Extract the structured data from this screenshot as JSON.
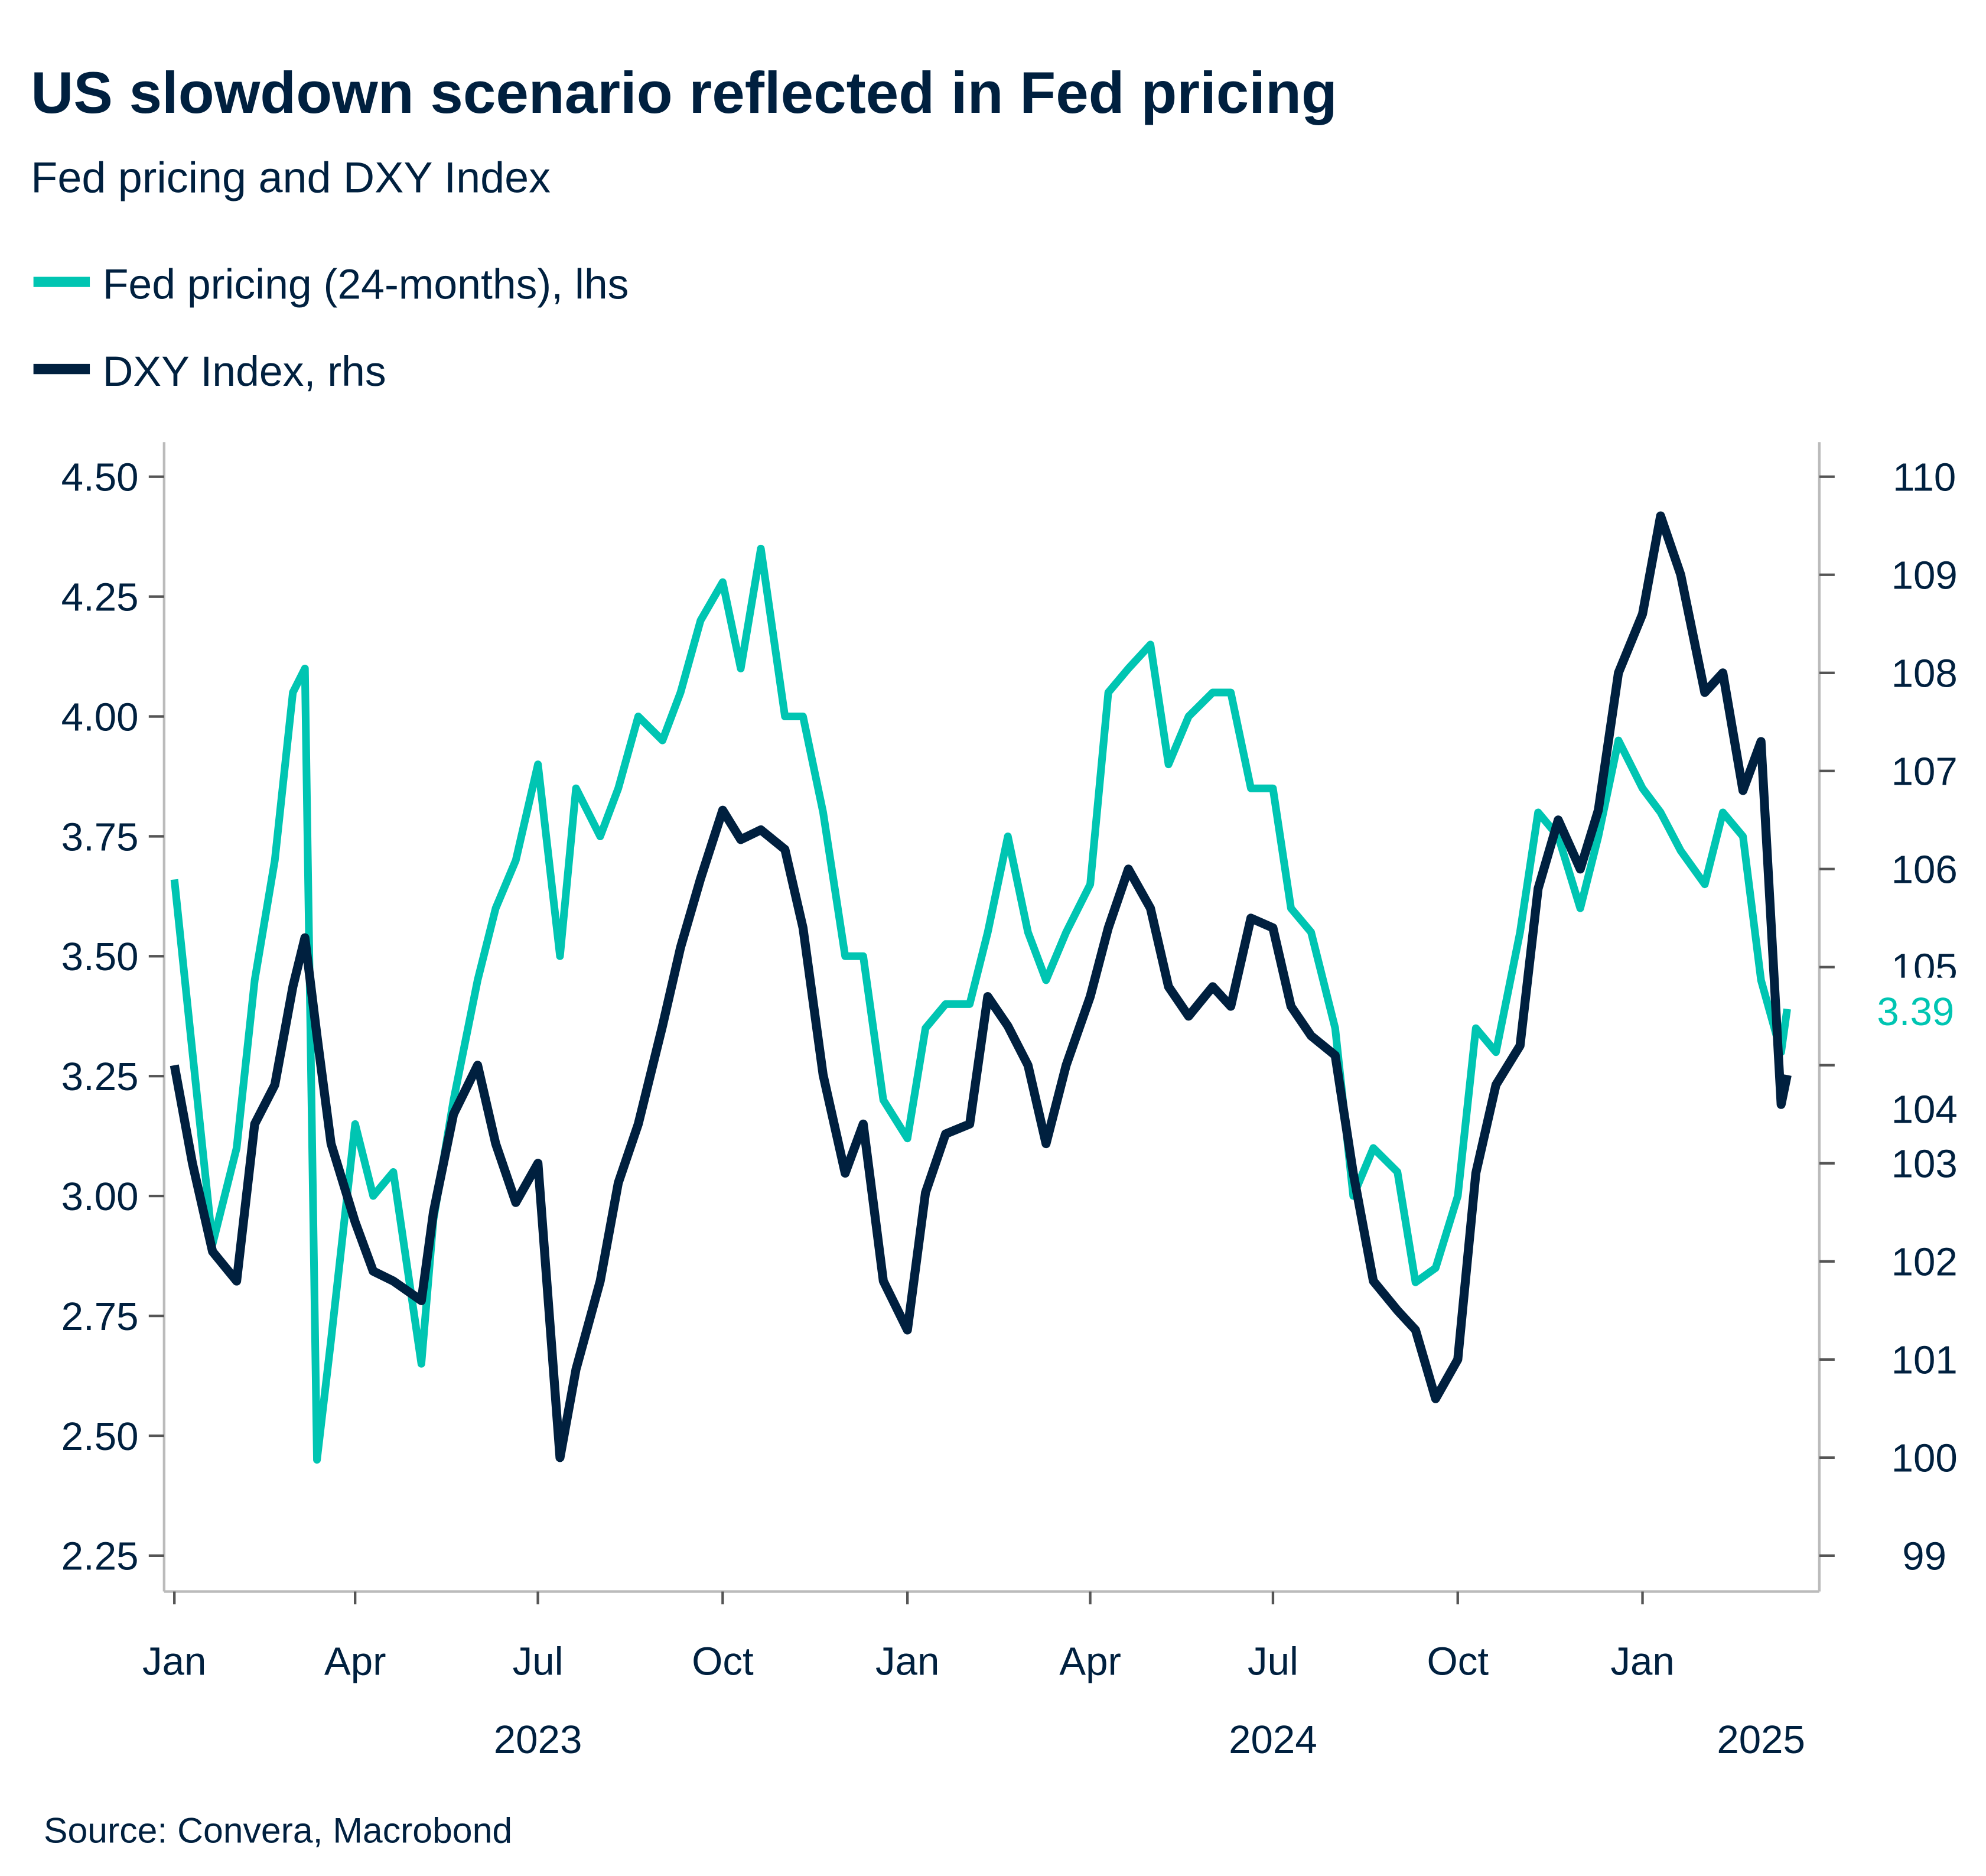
{
  "title": "US slowdown scenario reflected in Fed pricing",
  "subtitle": "Fed pricing and DXY Index",
  "source": "Source: Convera, Macrobond",
  "colors": {
    "fed": "#00c5b2",
    "dxy": "#00203f",
    "axis": "#bbbbbb",
    "tick": "#555555"
  },
  "chart_data": {
    "type": "line",
    "title": "US slowdown scenario reflected in Fed pricing",
    "subtitle": "Fed pricing and DXY Index",
    "legend_position": "top-left",
    "grid": false,
    "x_axis": {
      "range": [
        "2023-01-01",
        "2025-03-14"
      ],
      "ticks": [
        {
          "date": "2023-01-01",
          "label": "Jan"
        },
        {
          "date": "2023-04-01",
          "label": "Apr"
        },
        {
          "date": "2023-07-01",
          "label": "Jul"
        },
        {
          "date": "2023-10-01",
          "label": "Oct"
        },
        {
          "date": "2024-01-01",
          "label": "Jan"
        },
        {
          "date": "2024-04-01",
          "label": "Apr"
        },
        {
          "date": "2024-07-01",
          "label": "Jul"
        },
        {
          "date": "2024-10-01",
          "label": "Oct"
        },
        {
          "date": "2025-01-01",
          "label": "Jan"
        }
      ],
      "year_labels": [
        {
          "date": "2023-07-01",
          "label": "2023"
        },
        {
          "date": "2024-07-01",
          "label": "2024"
        },
        {
          "date": "2025-03-01",
          "label": "2025"
        }
      ]
    },
    "y_left": {
      "range": [
        2.25,
        4.5
      ],
      "ticks": [
        "2.25",
        "2.50",
        "2.75",
        "3.00",
        "3.25",
        "3.50",
        "3.75",
        "4.00",
        "4.25",
        "4.50"
      ]
    },
    "y_right": {
      "range": [
        99,
        110
      ],
      "ticks": [
        "99",
        "100",
        "101",
        "102",
        "103",
        "104",
        "105",
        "106",
        "107",
        "108",
        "109",
        "110"
      ]
    },
    "last_value_label": "3.39",
    "x": [
      "2023-01-01",
      "2023-01-10",
      "2023-01-20",
      "2023-02-01",
      "2023-02-10",
      "2023-02-20",
      "2023-03-01",
      "2023-03-07",
      "2023-03-13",
      "2023-03-20",
      "2023-04-01",
      "2023-04-10",
      "2023-04-20",
      "2023-05-04",
      "2023-05-10",
      "2023-05-20",
      "2023-06-01",
      "2023-06-10",
      "2023-06-20",
      "2023-07-01",
      "2023-07-12",
      "2023-07-20",
      "2023-08-01",
      "2023-08-10",
      "2023-08-20",
      "2023-09-01",
      "2023-09-10",
      "2023-09-20",
      "2023-10-01",
      "2023-10-10",
      "2023-10-20",
      "2023-11-01",
      "2023-11-10",
      "2023-11-20",
      "2023-12-01",
      "2023-12-10",
      "2023-12-20",
      "2024-01-01",
      "2024-01-10",
      "2024-01-20",
      "2024-02-01",
      "2024-02-10",
      "2024-02-20",
      "2024-03-01",
      "2024-03-10",
      "2024-03-20",
      "2024-04-01",
      "2024-04-10",
      "2024-04-20",
      "2024-05-01",
      "2024-05-10",
      "2024-05-20",
      "2024-06-01",
      "2024-06-10",
      "2024-06-20",
      "2024-07-01",
      "2024-07-10",
      "2024-07-20",
      "2024-08-01",
      "2024-08-10",
      "2024-08-20",
      "2024-09-01",
      "2024-09-10",
      "2024-09-20",
      "2024-10-01",
      "2024-10-10",
      "2024-10-20",
      "2024-11-01",
      "2024-11-10",
      "2024-11-20",
      "2024-12-01",
      "2024-12-10",
      "2024-12-20",
      "2025-01-01",
      "2025-01-10",
      "2025-01-20",
      "2025-02-01",
      "2025-02-10",
      "2025-02-20",
      "2025-03-01",
      "2025-03-11",
      "2025-03-14"
    ],
    "series": [
      {
        "name": "Fed pricing (24-months), lhs",
        "axis": "left",
        "color": "#00c5b2",
        "values": [
          3.66,
          3.3,
          2.9,
          3.1,
          3.45,
          3.7,
          4.05,
          4.1,
          2.45,
          2.7,
          3.15,
          3.0,
          3.05,
          2.65,
          2.95,
          3.2,
          3.45,
          3.6,
          3.7,
          3.9,
          3.5,
          3.85,
          3.75,
          3.85,
          4.0,
          3.95,
          4.05,
          4.2,
          4.28,
          4.1,
          4.35,
          4.0,
          4.0,
          3.8,
          3.5,
          3.5,
          3.2,
          3.12,
          3.35,
          3.4,
          3.4,
          3.55,
          3.75,
          3.55,
          3.45,
          3.55,
          3.65,
          4.05,
          4.1,
          4.15,
          3.9,
          4.0,
          4.05,
          4.05,
          3.85,
          3.85,
          3.6,
          3.55,
          3.35,
          3.0,
          3.1,
          3.05,
          2.82,
          2.85,
          3.0,
          3.35,
          3.3,
          3.55,
          3.8,
          3.75,
          3.6,
          3.75,
          3.95,
          3.85,
          3.8,
          3.72,
          3.65,
          3.8,
          3.75,
          3.45,
          3.3,
          3.39
        ]
      },
      {
        "name": "DXY Index, rhs",
        "axis": "right",
        "color": "#00203f",
        "values": [
          104.0,
          103.0,
          102.1,
          101.8,
          103.4,
          103.8,
          104.8,
          105.3,
          104.3,
          103.2,
          102.4,
          101.9,
          101.8,
          101.6,
          102.5,
          103.5,
          104.0,
          103.2,
          102.6,
          103.0,
          100.0,
          100.9,
          101.8,
          102.8,
          103.4,
          104.4,
          105.2,
          105.9,
          106.6,
          106.3,
          106.4,
          106.2,
          105.4,
          103.9,
          102.9,
          103.4,
          101.8,
          101.3,
          102.7,
          103.3,
          103.4,
          104.7,
          104.4,
          104.0,
          103.2,
          104.0,
          104.7,
          105.4,
          106.0,
          105.6,
          104.8,
          104.5,
          104.8,
          104.6,
          105.5,
          105.4,
          104.6,
          104.3,
          104.1,
          102.9,
          101.8,
          101.5,
          101.3,
          100.6,
          101.0,
          102.9,
          103.8,
          104.2,
          105.8,
          106.5,
          106.0,
          106.6,
          108.0,
          108.6,
          109.6,
          109.0,
          107.8,
          108.0,
          106.8,
          107.3,
          103.6,
          103.9
        ]
      }
    ]
  }
}
